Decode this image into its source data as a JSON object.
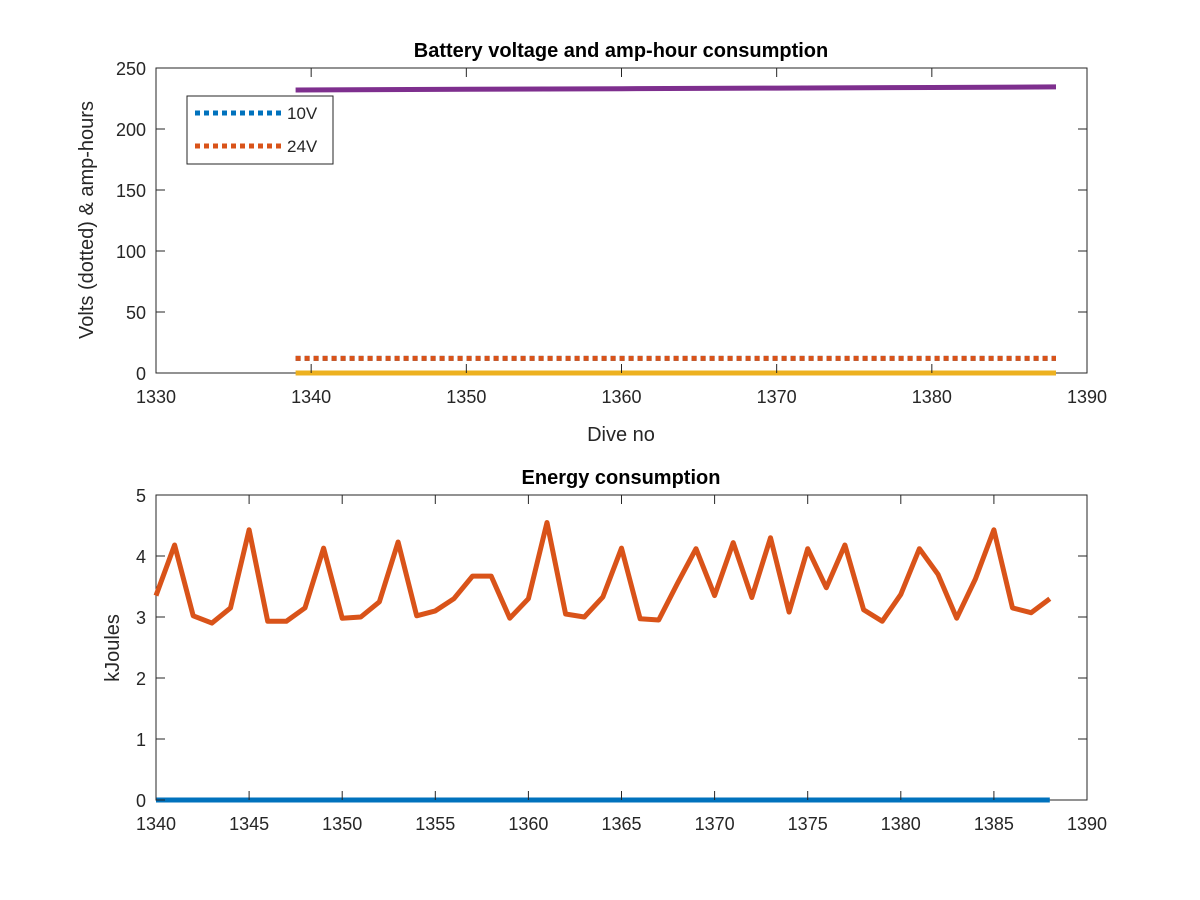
{
  "chart_data": [
    {
      "type": "line",
      "title": "Battery voltage and amp-hour consumption",
      "xlabel": "Dive no",
      "ylabel": "Volts (dotted) & amp-hours",
      "xlim": [
        1330,
        1390
      ],
      "ylim": [
        0,
        250
      ],
      "xticks": [
        1330,
        1340,
        1350,
        1360,
        1370,
        1380,
        1390
      ],
      "yticks": [
        0,
        50,
        100,
        150,
        200,
        250
      ],
      "grid": false,
      "legend": {
        "placement": "top-left",
        "entries": [
          "10V",
          "24V"
        ]
      },
      "series": [
        {
          "name": "10V",
          "style": "dotted",
          "color": "#0072BD",
          "x": [
            1339,
            1388
          ],
          "y": [
            12,
            12
          ]
        },
        {
          "name": "24V",
          "style": "dotted",
          "color": "#D95319",
          "x": [
            1339,
            1388
          ],
          "y": [
            12,
            12
          ]
        },
        {
          "style": "solid",
          "color": "#EDB120",
          "x": [
            1339,
            1388
          ],
          "y": [
            0,
            0
          ]
        },
        {
          "style": "solid",
          "color": "#7E2F8E",
          "x": [
            1339,
            1350,
            1360,
            1370,
            1380,
            1388
          ],
          "y": [
            232,
            232.5,
            233,
            233.5,
            234,
            234.5
          ]
        }
      ]
    },
    {
      "type": "line",
      "title": "Energy consumption",
      "xlabel": "",
      "ylabel": "kJoules",
      "xlim": [
        1340,
        1390
      ],
      "ylim": [
        0,
        5
      ],
      "xticks": [
        1340,
        1345,
        1350,
        1355,
        1360,
        1365,
        1370,
        1375,
        1380,
        1385,
        1390
      ],
      "yticks": [
        0,
        1,
        2,
        3,
        4,
        5
      ],
      "grid": false,
      "series": [
        {
          "style": "solid",
          "color": "#0072BD",
          "x": [
            1340,
            1388
          ],
          "y": [
            0,
            0
          ]
        },
        {
          "style": "solid",
          "color": "#D95319",
          "x": [
            1340,
            1341,
            1342,
            1343,
            1344,
            1345,
            1346,
            1347,
            1348,
            1349,
            1350,
            1351,
            1352,
            1353,
            1354,
            1355,
            1356,
            1357,
            1358,
            1359,
            1360,
            1361,
            1362,
            1363,
            1364,
            1365,
            1366,
            1367,
            1368,
            1369,
            1370,
            1371,
            1372,
            1373,
            1374,
            1375,
            1376,
            1377,
            1378,
            1379,
            1380,
            1381,
            1382,
            1383,
            1384,
            1385,
            1386,
            1387,
            1388
          ],
          "y": [
            3.35,
            4.18,
            3.02,
            2.9,
            3.15,
            4.43,
            2.93,
            2.93,
            3.15,
            4.13,
            2.98,
            3.0,
            3.25,
            4.23,
            3.02,
            3.1,
            3.3,
            3.67,
            3.67,
            2.98,
            3.3,
            4.55,
            3.05,
            3.0,
            3.33,
            4.13,
            2.97,
            2.95,
            3.55,
            4.12,
            3.35,
            4.22,
            3.32,
            4.3,
            3.08,
            4.12,
            3.48,
            4.18,
            3.12,
            2.93,
            3.37,
            4.12,
            3.7,
            2.98,
            3.62,
            4.43,
            3.15,
            3.07,
            3.3
          ]
        }
      ]
    }
  ]
}
